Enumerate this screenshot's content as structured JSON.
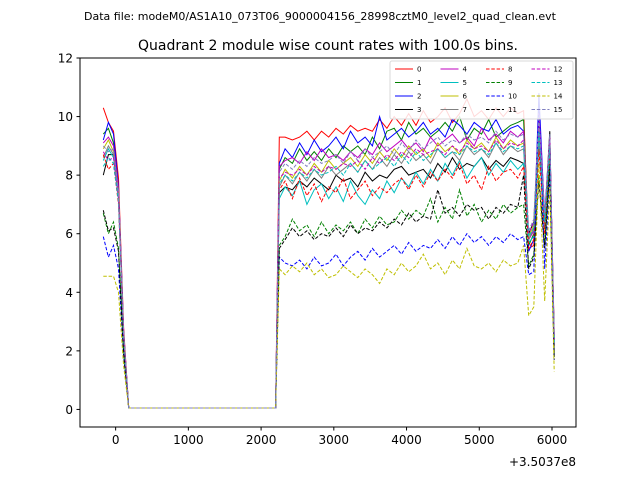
{
  "suptitle": "Data file: modeM0/AS1A10_073T06_9000004156_28998cztM0_level2_quad_clean.evt",
  "chart_data": {
    "type": "line",
    "title": "Quadrant 2 module wise count rates with 100.0s bins.",
    "xlabel": "",
    "ylabel": "",
    "x_offset_label": "+3.5037e8",
    "xlim": [
      -490,
      6330
    ],
    "ylim": [
      -0.6,
      12
    ],
    "xticks": [
      0,
      1000,
      2000,
      3000,
      4000,
      5000,
      6000
    ],
    "yticks": [
      0,
      2,
      4,
      6,
      8,
      10,
      12
    ],
    "grid": false,
    "legend": "top-right",
    "x": [
      -170,
      -100,
      -30,
      40,
      110,
      180,
      250,
      2150,
      2200,
      2250,
      2330,
      2430,
      2530,
      2630,
      2730,
      2830,
      2930,
      3030,
      3130,
      3230,
      3330,
      3430,
      3530,
      3630,
      3730,
      3830,
      3930,
      4030,
      4130,
      4230,
      4330,
      4430,
      4530,
      4630,
      4730,
      4830,
      4930,
      5030,
      5130,
      5230,
      5330,
      5430,
      5530,
      5610,
      5680,
      5750,
      5820,
      5900,
      5970,
      6030
    ],
    "series": [
      {
        "name": "0",
        "color": "#ff0000",
        "dash": false,
        "values": [
          10.3,
          9.8,
          9.5,
          7.9,
          2.8,
          0.05,
          0.05,
          0.05,
          0.05,
          9.3,
          9.3,
          9.2,
          9.3,
          9.5,
          9.2,
          9.5,
          9.3,
          9.6,
          9.4,
          9.7,
          9.5,
          9.6,
          9.5,
          9.9,
          9.6,
          10.0,
          9.7,
          10.1,
          9.7,
          10.2,
          9.8,
          10.0,
          10.3,
          9.8,
          10.1,
          10.6,
          10.0,
          10.2,
          9.9,
          10.3,
          10.0,
          10.3,
          10.1,
          10.2,
          5.5,
          5.6,
          9.9,
          6.5,
          9.2,
          2.6
        ]
      },
      {
        "name": "1",
        "color": "#008000",
        "dash": false,
        "values": [
          9.4,
          9.6,
          9.1,
          7.4,
          2.6,
          0.05,
          0.05,
          0.05,
          0.05,
          8.2,
          8.6,
          8.4,
          8.9,
          8.5,
          8.8,
          8.5,
          8.9,
          8.6,
          9.0,
          8.8,
          9.0,
          8.7,
          9.3,
          8.9,
          9.5,
          9.6,
          9.2,
          9.8,
          9.4,
          9.6,
          9.3,
          9.5,
          9.8,
          9.5,
          10.0,
          9.2,
          9.6,
          9.4,
          9.9,
          9.3,
          9.5,
          9.7,
          9.8,
          9.9,
          5.6,
          6.0,
          9.5,
          6.2,
          9.0,
          2.4
        ]
      },
      {
        "name": "2",
        "color": "#0000ff",
        "dash": false,
        "values": [
          9.2,
          9.8,
          9.4,
          7.6,
          2.7,
          0.05,
          0.05,
          0.05,
          0.05,
          8.4,
          8.9,
          8.6,
          9.1,
          8.7,
          9.2,
          8.8,
          9.0,
          9.3,
          8.9,
          9.5,
          9.1,
          9.3,
          9.0,
          10.0,
          9.2,
          9.4,
          9.6,
          9.3,
          9.5,
          9.8,
          9.4,
          9.6,
          9.3,
          9.9,
          9.7,
          9.4,
          9.8,
          9.6,
          9.5,
          9.9,
          9.4,
          9.6,
          9.7,
          9.5,
          5.4,
          5.8,
          10.8,
          6.5,
          9.1,
          2.5
        ]
      },
      {
        "name": "3",
        "color": "#000000",
        "dash": false,
        "values": [
          8.0,
          8.7,
          8.7,
          7.3,
          2.5,
          0.05,
          0.05,
          0.05,
          0.05,
          7.4,
          7.6,
          7.5,
          7.8,
          7.6,
          7.9,
          7.7,
          7.5,
          8.0,
          7.8,
          7.9,
          7.6,
          8.1,
          7.8,
          8.0,
          7.9,
          8.2,
          8.3,
          8.0,
          8.1,
          8.2,
          7.9,
          8.4,
          8.1,
          8.6,
          8.2,
          8.4,
          8.3,
          8.6,
          8.2,
          8.5,
          8.3,
          8.6,
          8.5,
          8.4,
          6.0,
          6.4,
          9.7,
          6.5,
          9.5,
          1.9
        ]
      },
      {
        "name": "4",
        "color": "#bf00bf",
        "dash": false,
        "values": [
          9.1,
          9.3,
          9.0,
          7.5,
          2.6,
          0.05,
          0.05,
          0.05,
          0.05,
          8.3,
          8.5,
          8.6,
          8.4,
          8.8,
          8.5,
          8.9,
          8.6,
          8.7,
          8.5,
          8.8,
          8.6,
          8.9,
          8.7,
          9.1,
          8.8,
          9.0,
          9.2,
          8.9,
          9.1,
          8.8,
          9.3,
          9.0,
          9.2,
          9.4,
          9.1,
          9.3,
          9.0,
          9.6,
          9.2,
          9.4,
          9.1,
          9.5,
          9.3,
          9.5,
          5.8,
          6.1,
          10.2,
          6.6,
          9.3,
          2.3
        ]
      },
      {
        "name": "5",
        "color": "#00bfbf",
        "dash": false,
        "values": [
          8.5,
          8.9,
          8.6,
          7.2,
          2.5,
          0.05,
          0.05,
          0.05,
          0.05,
          7.2,
          7.6,
          7.3,
          7.8,
          7.0,
          7.5,
          7.7,
          7.2,
          7.6,
          7.1,
          7.8,
          7.3,
          7.0,
          7.5,
          7.2,
          7.8,
          7.4,
          7.9,
          7.6,
          8.1,
          7.7,
          8.2,
          7.8,
          8.4,
          8.0,
          8.5,
          7.9,
          8.3,
          8.6,
          8.0,
          8.4,
          8.1,
          8.5,
          8.2,
          8.4,
          5.7,
          5.9,
          9.0,
          6.2,
          8.8,
          2.2
        ]
      },
      {
        "name": "6",
        "color": "#bfbf00",
        "dash": false,
        "values": [
          8.9,
          9.2,
          8.8,
          7.4,
          2.6,
          0.05,
          0.05,
          0.05,
          0.05,
          7.8,
          8.2,
          7.9,
          8.3,
          8.0,
          8.4,
          8.1,
          8.5,
          8.2,
          8.4,
          8.6,
          8.3,
          8.7,
          8.4,
          8.8,
          8.5,
          8.9,
          8.6,
          9.0,
          8.7,
          8.9,
          8.6,
          9.1,
          8.8,
          9.0,
          8.7,
          9.2,
          8.9,
          9.1,
          8.8,
          9.3,
          8.9,
          9.2,
          9.0,
          9.1,
          5.9,
          6.3,
          9.6,
          6.4,
          9.0,
          2.4
        ]
      },
      {
        "name": "7",
        "color": "#808080",
        "dash": false,
        "values": [
          8.6,
          9.0,
          8.7,
          7.3,
          2.5,
          0.05,
          0.05,
          0.05,
          0.05,
          7.6,
          8.0,
          7.7,
          8.1,
          7.8,
          8.2,
          7.9,
          8.3,
          8.0,
          8.2,
          8.4,
          8.1,
          8.5,
          8.2,
          8.6,
          8.3,
          8.7,
          8.4,
          8.8,
          8.5,
          8.7,
          8.4,
          8.9,
          8.6,
          8.8,
          8.5,
          9.0,
          8.7,
          8.9,
          8.6,
          9.1,
          8.7,
          9.0,
          8.8,
          8.9,
          5.8,
          6.2,
          9.4,
          6.3,
          8.9,
          2.3
        ]
      },
      {
        "name": "8",
        "color": "#ff0000",
        "dash": true,
        "values": [
          8.7,
          8.2,
          8.4,
          7.0,
          2.5,
          0.05,
          0.05,
          0.05,
          0.05,
          7.5,
          7.8,
          7.2,
          7.9,
          7.3,
          7.7,
          7.1,
          7.6,
          7.4,
          7.9,
          7.2,
          7.5,
          7.8,
          7.3,
          7.6,
          7.4,
          7.7,
          7.9,
          7.5,
          8.0,
          7.6,
          8.1,
          7.8,
          8.2,
          7.9,
          8.4,
          7.7,
          8.0,
          7.5,
          8.3,
          7.8,
          8.1,
          8.2,
          7.9,
          8.3,
          5.5,
          5.8,
          8.9,
          6.0,
          8.7,
          2.1
        ]
      },
      {
        "name": "9",
        "color": "#008000",
        "dash": true,
        "values": [
          6.7,
          6.0,
          6.4,
          5.5,
          2.0,
          0.05,
          0.05,
          0.05,
          0.05,
          5.6,
          5.9,
          6.5,
          6.1,
          6.3,
          5.9,
          6.4,
          6.0,
          6.3,
          6.1,
          6.4,
          6.0,
          6.5,
          6.2,
          6.6,
          6.3,
          6.4,
          6.8,
          6.5,
          6.8,
          6.6,
          7.2,
          6.4,
          6.9,
          6.5,
          7.5,
          6.6,
          7.0,
          6.4,
          6.8,
          6.5,
          7.0,
          6.7,
          6.9,
          7.0,
          4.9,
          5.3,
          8.0,
          5.6,
          8.5,
          1.8
        ]
      },
      {
        "name": "10",
        "color": "#0000ff",
        "dash": true,
        "values": [
          5.9,
          5.2,
          5.6,
          4.8,
          1.8,
          0.05,
          0.05,
          0.05,
          0.05,
          5.2,
          5.0,
          4.9,
          5.1,
          4.8,
          5.2,
          4.9,
          5.0,
          5.3,
          4.9,
          5.2,
          5.4,
          5.1,
          5.5,
          5.2,
          5.4,
          5.6,
          5.3,
          5.7,
          5.4,
          5.6,
          5.5,
          5.8,
          5.5,
          5.9,
          5.6,
          6.0,
          5.7,
          5.9,
          5.6,
          5.9,
          5.7,
          6.0,
          5.8,
          5.9,
          4.6,
          4.7,
          10.5,
          4.8,
          8.0,
          1.7
        ]
      },
      {
        "name": "11",
        "color": "#000000",
        "dash": true,
        "values": [
          6.8,
          6.1,
          6.2,
          5.4,
          2.0,
          0.05,
          0.05,
          0.05,
          0.05,
          5.5,
          5.8,
          6.2,
          5.9,
          6.1,
          5.8,
          6.0,
          5.9,
          6.2,
          5.9,
          6.3,
          6.0,
          6.2,
          6.1,
          6.4,
          6.2,
          6.5,
          6.3,
          6.7,
          6.4,
          6.6,
          6.5,
          7.5,
          6.7,
          6.9,
          6.6,
          7.0,
          6.8,
          6.9,
          6.5,
          6.9,
          6.7,
          7.0,
          6.9,
          8.0,
          4.8,
          5.2,
          7.8,
          5.5,
          8.3,
          1.7
        ]
      },
      {
        "name": "12",
        "color": "#bf00bf",
        "dash": true,
        "values": [
          8.8,
          8.5,
          8.6,
          7.2,
          2.5,
          0.05,
          0.05,
          0.05,
          0.05,
          7.9,
          8.1,
          8.0,
          8.2,
          8.0,
          8.3,
          8.1,
          8.3,
          8.2,
          8.4,
          8.3,
          8.5,
          8.2,
          8.6,
          8.4,
          8.7,
          8.5,
          8.8,
          8.6,
          8.9,
          8.7,
          8.8,
          8.9,
          8.7,
          9.0,
          8.8,
          9.1,
          8.9,
          9.0,
          8.8,
          9.2,
          8.9,
          9.1,
          9.0,
          9.2,
          6.0,
          6.4,
          9.8,
          6.6,
          9.2,
          2.4
        ]
      },
      {
        "name": "13",
        "color": "#00bfbf",
        "dash": true,
        "values": [
          8.3,
          8.6,
          8.4,
          7.1,
          2.5,
          0.05,
          0.05,
          0.05,
          0.05,
          7.7,
          8.0,
          7.8,
          8.1,
          7.9,
          8.2,
          8.0,
          8.1,
          8.3,
          8.0,
          8.4,
          8.1,
          8.5,
          8.2,
          8.4,
          8.6,
          8.3,
          8.7,
          8.4,
          8.8,
          8.5,
          8.7,
          8.9,
          8.6,
          8.8,
          8.7,
          9.0,
          8.8,
          8.9,
          8.7,
          9.1,
          8.8,
          9.0,
          8.9,
          9.0,
          5.9,
          6.2,
          9.5,
          6.4,
          9.0,
          2.3
        ]
      },
      {
        "name": "14",
        "color": "#bfbf00",
        "dash": true,
        "values": [
          4.55,
          4.55,
          4.55,
          4.0,
          1.5,
          0.05,
          0.05,
          0.05,
          0.05,
          4.8,
          4.6,
          4.9,
          4.7,
          5.0,
          4.6,
          4.8,
          4.5,
          4.6,
          4.9,
          4.7,
          4.5,
          4.8,
          4.6,
          4.3,
          4.8,
          4.6,
          5.0,
          4.7,
          4.9,
          5.3,
          4.8,
          5.0,
          4.6,
          5.1,
          4.8,
          5.5,
          4.9,
          4.8,
          5.0,
          4.7,
          5.1,
          4.9,
          5.0,
          5.6,
          3.2,
          3.5,
          8.4,
          3.7,
          7.6,
          1.3
        ]
      },
      {
        "name": "15",
        "color": "#8080c0",
        "dash": true,
        "values": [
          9.0,
          8.8,
          8.9,
          7.4,
          2.6,
          0.05,
          0.05,
          0.05,
          0.05,
          8.1,
          8.4,
          8.2,
          8.5,
          8.3,
          8.6,
          8.4,
          8.5,
          8.7,
          8.4,
          8.8,
          8.5,
          8.9,
          8.6,
          8.8,
          9.0,
          8.7,
          9.1,
          8.8,
          9.2,
          8.9,
          9.1,
          9.3,
          9.0,
          9.2,
          9.1,
          9.4,
          9.2,
          9.3,
          9.1,
          9.5,
          9.2,
          9.4,
          9.3,
          9.4,
          6.1,
          6.5,
          10.0,
          6.7,
          9.4,
          2.5
        ]
      }
    ]
  }
}
